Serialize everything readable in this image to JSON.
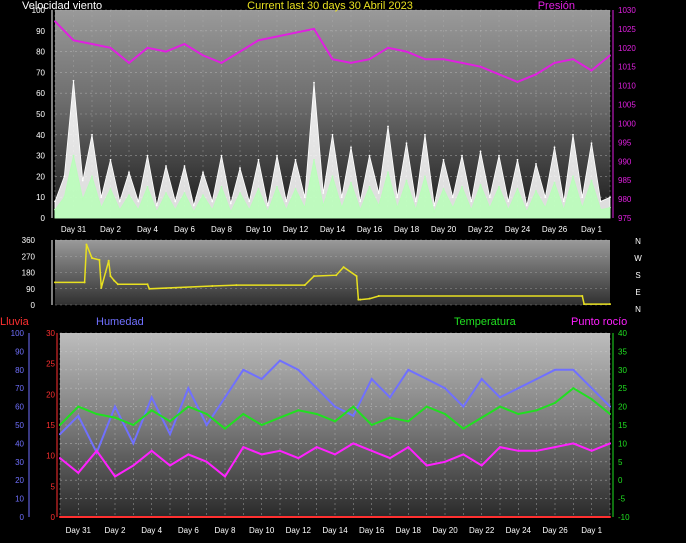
{
  "chart_data": [
    {
      "type": "line",
      "title": "Current last 30 days 30 Abril 2023",
      "left_label": "Velocidad viento",
      "right_label": "Presión",
      "left_ticks": [
        "0",
        "10",
        "20",
        "30",
        "40",
        "50",
        "60",
        "70",
        "80",
        "90",
        "100"
      ],
      "right_ticks": [
        "975",
        "980",
        "985",
        "990",
        "995",
        "1000",
        "1005",
        "1010",
        "1015",
        "1020",
        "1025",
        "1030"
      ],
      "ylim_left": [
        0,
        100
      ],
      "ylim_right": [
        975,
        1030
      ],
      "x_labels": [
        "Day 31",
        "Day 2",
        "Day 4",
        "Day 6",
        "Day 8",
        "Day 10",
        "Day 12",
        "Day 14",
        "Day 16",
        "Day 18",
        "Day 20",
        "Day 22",
        "Day 24",
        "Day 26",
        "Day 1"
      ],
      "series": [
        {
          "axis": "right",
          "color": "#e020e0",
          "x": [
            0,
            1,
            2,
            3,
            4,
            5,
            6,
            7,
            8,
            9,
            10,
            11,
            12,
            13,
            14,
            15,
            16,
            17,
            18,
            19,
            20,
            21,
            22,
            23,
            24,
            25,
            26,
            27,
            28,
            29,
            30
          ],
          "values": [
            1027,
            1022,
            1021,
            1020,
            1016,
            1020,
            1019,
            1021,
            1018,
            1016,
            1019,
            1022,
            1023,
            1024,
            1025,
            1017,
            1016,
            1017,
            1020,
            1019,
            1017,
            1017,
            1016,
            1015,
            1013,
            1011,
            1013,
            1016,
            1017,
            1014,
            1018
          ]
        },
        {
          "axis": "left",
          "color": "#ffffff",
          "x": [
            0,
            0.5,
            1,
            1.5,
            2,
            2.5,
            3,
            3.5,
            4,
            4.5,
            5,
            5.5,
            6,
            6.5,
            7,
            7.5,
            8,
            8.5,
            9,
            9.5,
            10,
            10.5,
            11,
            11.5,
            12,
            12.5,
            13,
            13.5,
            14,
            14.5,
            15,
            15.5,
            16,
            16.5,
            17,
            17.5,
            18,
            18.5,
            19,
            19.5,
            20,
            20.5,
            21,
            21.5,
            22,
            22.5,
            23,
            23.5,
            24,
            24.5,
            25,
            25.5,
            26,
            26.5,
            27,
            27.5,
            28,
            28.5,
            29,
            29.5,
            30
          ],
          "values": [
            8,
            20,
            66,
            18,
            40,
            10,
            28,
            8,
            22,
            8,
            30,
            6,
            25,
            8,
            25,
            6,
            22,
            8,
            30,
            7,
            24,
            8,
            28,
            6,
            30,
            8,
            28,
            10,
            65,
            12,
            40,
            10,
            34,
            8,
            30,
            12,
            44,
            10,
            36,
            8,
            40,
            6,
            28,
            10,
            30,
            8,
            32,
            10,
            30,
            8,
            28,
            6,
            26,
            10,
            34,
            8,
            40,
            10,
            36,
            8,
            10
          ]
        },
        {
          "axis": "left",
          "color": "#b8ffb8",
          "x": [
            0,
            0.5,
            1,
            1.5,
            2,
            2.5,
            3,
            3.5,
            4,
            4.5,
            5,
            5.5,
            6,
            6.5,
            7,
            7.5,
            8,
            8.5,
            9,
            9.5,
            10,
            10.5,
            11,
            11.5,
            12,
            12.5,
            13,
            13.5,
            14,
            14.5,
            15,
            15.5,
            16,
            16.5,
            17,
            17.5,
            18,
            18.5,
            19,
            19.5,
            20,
            20.5,
            21,
            21.5,
            22,
            22.5,
            23,
            23.5,
            24,
            24.5,
            25,
            25.5,
            26,
            26.5,
            27,
            27.5,
            28,
            28.5,
            29,
            29.5,
            30
          ],
          "values": [
            4,
            10,
            30,
            9,
            20,
            5,
            14,
            4,
            11,
            4,
            15,
            3,
            12,
            4,
            12,
            3,
            11,
            4,
            15,
            3,
            12,
            4,
            14,
            3,
            15,
            4,
            14,
            5,
            28,
            6,
            20,
            5,
            17,
            4,
            15,
            6,
            22,
            5,
            18,
            4,
            20,
            3,
            14,
            5,
            15,
            4,
            16,
            5,
            15,
            4,
            14,
            3,
            13,
            5,
            17,
            4,
            20,
            5,
            18,
            4,
            5
          ]
        }
      ]
    },
    {
      "type": "line",
      "left_ticks": [
        "0",
        "90",
        "180",
        "270",
        "360"
      ],
      "right_ticks": [
        "N",
        "W",
        "S",
        "E",
        "N"
      ],
      "ylim": [
        0,
        360
      ],
      "series": [
        {
          "color": "#e8e020",
          "x": [
            0,
            1.6,
            1.7,
            2,
            2.4,
            2.5,
            2.9,
            3.0,
            3.2,
            3.4,
            5.0,
            5.1,
            8.5,
            9.8,
            13.5,
            14.0,
            15.2,
            15.6,
            16.3,
            16.4,
            16.5,
            17.0,
            17.5,
            28.5,
            28.6,
            30
          ],
          "values": [
            125,
            125,
            335,
            260,
            250,
            95,
            245,
            160,
            135,
            115,
            115,
            90,
            105,
            110,
            110,
            160,
            165,
            210,
            160,
            30,
            30,
            35,
            50,
            50,
            5,
            5
          ]
        }
      ]
    },
    {
      "type": "line",
      "label_rain": "Lluvia",
      "label_humidity": "Humedad",
      "label_temperature": "Temperatura",
      "label_dewpoint": "Punto rocío",
      "humidity_ticks": [
        "0",
        "10",
        "20",
        "30",
        "40",
        "50",
        "60",
        "70",
        "80",
        "90",
        "100"
      ],
      "rain_ticks": [
        "0",
        "5",
        "10",
        "15",
        "20",
        "25",
        "30"
      ],
      "temp_ticks": [
        "-10",
        "-5",
        "0",
        "5",
        "10",
        "15",
        "20",
        "25",
        "30",
        "35",
        "40"
      ],
      "ylim_humidity": [
        0,
        100
      ],
      "ylim_rain": [
        0,
        30
      ],
      "ylim_temp": [
        -10,
        40
      ],
      "x_labels": [
        "Day 31",
        "Day 2",
        "Day 4",
        "Day 6",
        "Day 8",
        "Day 10",
        "Day 12",
        "Day 14",
        "Day 16",
        "Day 18",
        "Day 20",
        "Day 22",
        "Day 24",
        "Day 26",
        "Day 1"
      ],
      "series": [
        {
          "axis": "humidity",
          "color": "#7070ff",
          "x": [
            0,
            1,
            2,
            3,
            4,
            5,
            6,
            7,
            8,
            9,
            10,
            11,
            12,
            13,
            14,
            15,
            16,
            17,
            18,
            19,
            20,
            21,
            22,
            23,
            24,
            25,
            26,
            27,
            28,
            29,
            30
          ],
          "values": [
            45,
            55,
            35,
            60,
            40,
            65,
            45,
            70,
            50,
            65,
            80,
            75,
            85,
            80,
            70,
            60,
            55,
            75,
            65,
            80,
            75,
            70,
            60,
            75,
            65,
            70,
            75,
            80,
            80,
            70,
            60
          ]
        },
        {
          "axis": "temp",
          "color": "#20e020",
          "x": [
            0,
            1,
            2,
            3,
            4,
            5,
            6,
            7,
            8,
            9,
            10,
            11,
            12,
            13,
            14,
            15,
            16,
            17,
            18,
            19,
            20,
            21,
            22,
            23,
            24,
            25,
            26,
            27,
            28,
            29,
            30
          ],
          "values": [
            15,
            20,
            18,
            17,
            15,
            19,
            16,
            20,
            18,
            14,
            18,
            15,
            17,
            19,
            18,
            16,
            20,
            15,
            17,
            16,
            20,
            18,
            14,
            17,
            20,
            18,
            19,
            21,
            25,
            22,
            18
          ]
        },
        {
          "axis": "temp",
          "color": "#ff20ff",
          "x": [
            0,
            1,
            2,
            3,
            4,
            5,
            6,
            7,
            8,
            9,
            10,
            11,
            12,
            13,
            14,
            15,
            16,
            17,
            18,
            19,
            20,
            21,
            22,
            23,
            24,
            25,
            26,
            27,
            28,
            29,
            30
          ],
          "values": [
            6,
            2,
            8,
            1,
            4,
            8,
            4,
            7,
            5,
            1,
            9,
            7,
            8,
            6,
            9,
            7,
            10,
            8,
            6,
            9,
            4,
            5,
            7,
            4,
            9,
            8,
            8,
            9,
            10,
            8,
            10
          ]
        },
        {
          "axis": "rain",
          "color": "#ff3030",
          "x": [
            0,
            30
          ],
          "values": [
            0,
            0
          ]
        }
      ]
    }
  ]
}
